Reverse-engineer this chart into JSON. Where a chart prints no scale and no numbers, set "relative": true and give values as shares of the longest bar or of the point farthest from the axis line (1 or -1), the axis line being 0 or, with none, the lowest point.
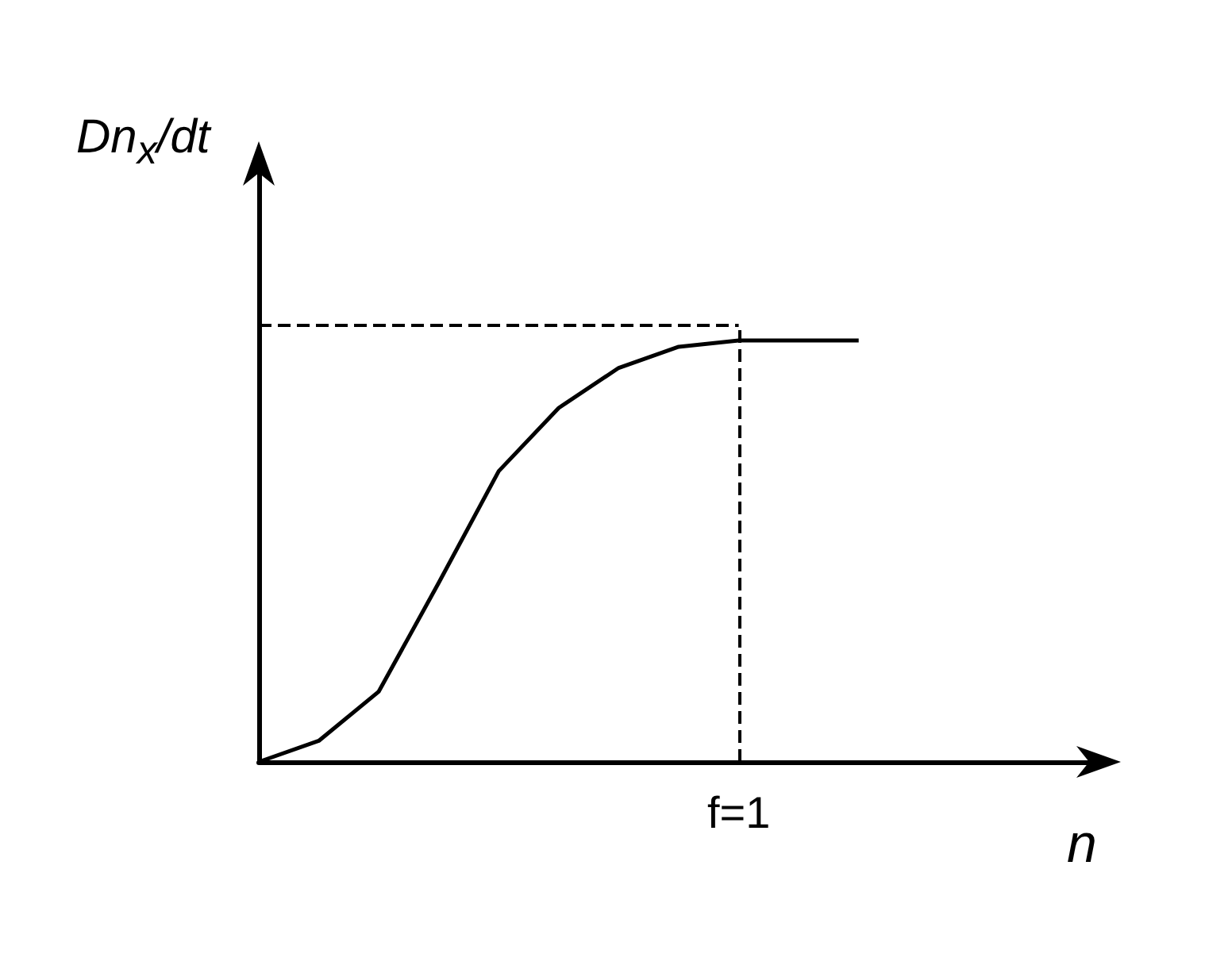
{
  "chart_data": {
    "type": "line",
    "relative": true,
    "xlabel": "n",
    "ylabel": "Dn$_{x}$/dt",
    "color": "#000000",
    "marker": "none",
    "line_style": "solid",
    "grid": false,
    "categories": [
      null,
      null,
      null,
      null,
      null,
      null,
      null,
      null,
      null,
      null,
      null
    ],
    "annotations": [
      "f=1"
    ],
    "values": [
      0,
      0.05,
      0.167,
      0.425,
      0.69,
      0.84,
      0.935,
      0.985,
      1,
      1,
      1
    ],
    "ref_lines": [
      {
        "axis": "y",
        "value": 1.036,
        "line_style": "dashed"
      }
    ]
  }
}
